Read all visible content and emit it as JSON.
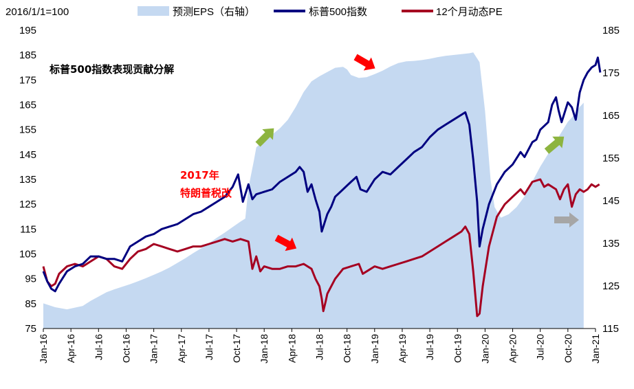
{
  "chart_data": {
    "type": "line",
    "title": "标普500指数表现贡献分解",
    "base_label": "2016/1/1=100",
    "categories": [
      "Jan-16",
      "Apr-16",
      "Jul-16",
      "Oct-16",
      "Jan-17",
      "Apr-17",
      "Jul-17",
      "Oct-17",
      "Jan-18",
      "Apr-18",
      "Jul-18",
      "Oct-18",
      "Jan-19",
      "Apr-19",
      "Jul-19",
      "Oct-19",
      "Jan-20",
      "Apr-20",
      "Jul-20",
      "Oct-20",
      "Jan-21"
    ],
    "ylim_left": [
      75,
      195
    ],
    "yticks_left": [
      75,
      85,
      95,
      105,
      115,
      125,
      135,
      145,
      155,
      165,
      175,
      185,
      195
    ],
    "ylim_right": [
      115,
      185
    ],
    "yticks_right": [
      115,
      125,
      135,
      145,
      155,
      165,
      175,
      185
    ],
    "series": [
      {
        "name": "预测EPS（右轴）",
        "type": "area",
        "axis": "right",
        "color": "#c5d9f1",
        "values": [
          [
            0,
            120.9
          ],
          [
            1.5,
            120.0
          ],
          [
            3,
            119.5
          ],
          [
            5,
            120.3
          ],
          [
            6,
            121.5
          ],
          [
            7,
            122.5
          ],
          [
            8,
            123.5
          ],
          [
            9,
            124.2
          ],
          [
            10,
            124.8
          ],
          [
            11,
            125.4
          ],
          [
            12,
            126.1
          ],
          [
            13,
            126.8
          ],
          [
            14,
            127.6
          ],
          [
            15,
            128.4
          ],
          [
            16,
            129.3
          ],
          [
            17,
            130.4
          ],
          [
            18,
            131.5
          ],
          [
            19,
            132.7
          ],
          [
            20,
            133.8
          ],
          [
            21,
            135.0
          ],
          [
            22,
            136.3
          ],
          [
            23,
            137.5
          ],
          [
            24,
            138.8
          ],
          [
            25,
            140.1
          ],
          [
            25.6,
            140.8
          ],
          [
            26,
            148.0
          ],
          [
            26.7,
            154.5
          ],
          [
            27,
            157.5
          ],
          [
            28,
            159.3
          ],
          [
            29,
            160.5
          ],
          [
            30,
            162.0
          ],
          [
            31,
            164.0
          ],
          [
            32,
            167.0
          ],
          [
            33,
            170.5
          ],
          [
            34,
            173.0
          ],
          [
            35,
            174.2
          ],
          [
            36,
            175.2
          ],
          [
            37,
            176.2
          ],
          [
            38,
            176.4
          ],
          [
            38.5,
            175.8
          ],
          [
            39,
            174.5
          ],
          [
            40,
            173.8
          ],
          [
            41,
            174.0
          ],
          [
            42,
            174.7
          ],
          [
            43,
            175.5
          ],
          [
            44,
            176.5
          ],
          [
            45,
            177.3
          ],
          [
            46,
            177.7
          ],
          [
            47,
            177.8
          ],
          [
            48,
            178.0
          ],
          [
            49,
            178.3
          ],
          [
            50,
            178.7
          ],
          [
            51,
            179.0
          ],
          [
            52,
            179.2
          ],
          [
            53,
            179.4
          ],
          [
            54,
            179.6
          ],
          [
            54.5,
            179.8
          ],
          [
            55.3,
            177.5
          ],
          [
            56,
            166.0
          ],
          [
            56.7,
            150.0
          ],
          [
            57.2,
            143.5
          ],
          [
            58,
            141.0
          ],
          [
            59,
            141.8
          ],
          [
            60,
            143.5
          ],
          [
            61,
            146.0
          ],
          [
            62,
            149.5
          ],
          [
            63,
            153.0
          ],
          [
            64,
            156.0
          ],
          [
            65,
            159.0
          ],
          [
            66,
            162.0
          ],
          [
            66.5,
            163.5
          ],
          [
            67,
            164.5
          ],
          [
            68,
            167.0
          ],
          [
            68.5,
            168.0
          ]
        ]
      },
      {
        "name": "标普500指数",
        "type": "line",
        "axis": "left",
        "color": "#000080",
        "values": [
          [
            0,
            98
          ],
          [
            0.5,
            94
          ],
          [
            1,
            91
          ],
          [
            1.5,
            90
          ],
          [
            2,
            93
          ],
          [
            3,
            98
          ],
          [
            4,
            100
          ],
          [
            5,
            101
          ],
          [
            6,
            104
          ],
          [
            7,
            104
          ],
          [
            8,
            103
          ],
          [
            9,
            103
          ],
          [
            10,
            102
          ],
          [
            11,
            108
          ],
          [
            12,
            110
          ],
          [
            13,
            112
          ],
          [
            14,
            113
          ],
          [
            15,
            115
          ],
          [
            16,
            116
          ],
          [
            17,
            117
          ],
          [
            18,
            119
          ],
          [
            19,
            121
          ],
          [
            20,
            122
          ],
          [
            21,
            124
          ],
          [
            22,
            126
          ],
          [
            23,
            128
          ],
          [
            24,
            132
          ],
          [
            24.7,
            137
          ],
          [
            25.3,
            126
          ],
          [
            26,
            133
          ],
          [
            26.5,
            127
          ],
          [
            27,
            129
          ],
          [
            28,
            130
          ],
          [
            29,
            131
          ],
          [
            30,
            134
          ],
          [
            31,
            136
          ],
          [
            32,
            138
          ],
          [
            32.5,
            140
          ],
          [
            33,
            138
          ],
          [
            33.5,
            130
          ],
          [
            34,
            133
          ],
          [
            34.5,
            127
          ],
          [
            35,
            122
          ],
          [
            35.3,
            114
          ],
          [
            35.6,
            117
          ],
          [
            36,
            121
          ],
          [
            36.5,
            124
          ],
          [
            37,
            128
          ],
          [
            38,
            131
          ],
          [
            39,
            134
          ],
          [
            39.7,
            136
          ],
          [
            40.2,
            131
          ],
          [
            41,
            130
          ],
          [
            42,
            135
          ],
          [
            43,
            138
          ],
          [
            44,
            137
          ],
          [
            45,
            140
          ],
          [
            46,
            143
          ],
          [
            47,
            146
          ],
          [
            48,
            148
          ],
          [
            49,
            152
          ],
          [
            50,
            155
          ],
          [
            51,
            157
          ],
          [
            52,
            159
          ],
          [
            53,
            161
          ],
          [
            53.5,
            162
          ],
          [
            54,
            157
          ],
          [
            54.5,
            143
          ],
          [
            55,
            126
          ],
          [
            55.3,
            108
          ],
          [
            55.7,
            115
          ],
          [
            56.5,
            125
          ],
          [
            57.5,
            133
          ],
          [
            58.5,
            138
          ],
          [
            59.5,
            141
          ],
          [
            60.5,
            146
          ],
          [
            61,
            144
          ],
          [
            62,
            150
          ],
          [
            62.5,
            151
          ],
          [
            63,
            155
          ],
          [
            64,
            158
          ],
          [
            64.5,
            165
          ],
          [
            65,
            168
          ],
          [
            65.3,
            163
          ],
          [
            65.7,
            158
          ],
          [
            66,
            161
          ],
          [
            66.5,
            166
          ],
          [
            67,
            164
          ],
          [
            67.5,
            159
          ],
          [
            68,
            170
          ],
          [
            68.5,
            175
          ],
          [
            69,
            178
          ],
          [
            69.5,
            180
          ],
          [
            70,
            181
          ],
          [
            70.3,
            184
          ],
          [
            70.6,
            178
          ]
        ]
      },
      {
        "name": "12个月动态PE",
        "type": "line",
        "axis": "left",
        "color": "#a50021",
        "values": [
          [
            0,
            100
          ],
          [
            0.5,
            94
          ],
          [
            1,
            92
          ],
          [
            1.5,
            93
          ],
          [
            2,
            97
          ],
          [
            3,
            100
          ],
          [
            4,
            101
          ],
          [
            5,
            100
          ],
          [
            6,
            102
          ],
          [
            7,
            104
          ],
          [
            8,
            103
          ],
          [
            9,
            100
          ],
          [
            10,
            99
          ],
          [
            11,
            103
          ],
          [
            12,
            106
          ],
          [
            13,
            107
          ],
          [
            14,
            109
          ],
          [
            15,
            108
          ],
          [
            16,
            107
          ],
          [
            17,
            106
          ],
          [
            18,
            107
          ],
          [
            19,
            108
          ],
          [
            20,
            108
          ],
          [
            21,
            109
          ],
          [
            22,
            110
          ],
          [
            23,
            111
          ],
          [
            24,
            110
          ],
          [
            25,
            111
          ],
          [
            26,
            110
          ],
          [
            26.5,
            99
          ],
          [
            27,
            104
          ],
          [
            27.5,
            98
          ],
          [
            28,
            100
          ],
          [
            29,
            99
          ],
          [
            30,
            99
          ],
          [
            31,
            100
          ],
          [
            32,
            100
          ],
          [
            33,
            101
          ],
          [
            34,
            99
          ],
          [
            34.5,
            95
          ],
          [
            35,
            92
          ],
          [
            35.3,
            87
          ],
          [
            35.5,
            82
          ],
          [
            35.8,
            86
          ],
          [
            36,
            89
          ],
          [
            37,
            95
          ],
          [
            38,
            99
          ],
          [
            39,
            100
          ],
          [
            40,
            101
          ],
          [
            40.5,
            97
          ],
          [
            41,
            98
          ],
          [
            42,
            100
          ],
          [
            43,
            99
          ],
          [
            44,
            100
          ],
          [
            45,
            101
          ],
          [
            46,
            102
          ],
          [
            47,
            103
          ],
          [
            48,
            104
          ],
          [
            49,
            106
          ],
          [
            50,
            108
          ],
          [
            51,
            110
          ],
          [
            52,
            112
          ],
          [
            53,
            114
          ],
          [
            53.5,
            116
          ],
          [
            54,
            113
          ],
          [
            54.5,
            98
          ],
          [
            55,
            80
          ],
          [
            55.3,
            81
          ],
          [
            55.7,
            92
          ],
          [
            56.5,
            108
          ],
          [
            57.5,
            120
          ],
          [
            58.5,
            125
          ],
          [
            59.5,
            128
          ],
          [
            60.5,
            131
          ],
          [
            61,
            129
          ],
          [
            62,
            134
          ],
          [
            63,
            135
          ],
          [
            63.5,
            132
          ],
          [
            64,
            133
          ],
          [
            65,
            131
          ],
          [
            65.5,
            127
          ],
          [
            66,
            131
          ],
          [
            66.5,
            133
          ],
          [
            67,
            124
          ],
          [
            67.5,
            129
          ],
          [
            68,
            131
          ],
          [
            68.5,
            130
          ],
          [
            69,
            131
          ],
          [
            69.5,
            133
          ],
          [
            70,
            132
          ],
          [
            70.5,
            133
          ]
        ]
      }
    ],
    "annotations": [
      {
        "text": "2017年",
        "color": "#ff0000"
      },
      {
        "text": "特朗普税改",
        "color": "#ff0000"
      }
    ],
    "arrows": [
      {
        "color": "#ff0000"
      },
      {
        "color": "#ff0000"
      },
      {
        "color": "#8db43f"
      },
      {
        "color": "#8db43f"
      },
      {
        "color": "#a6a6a6"
      }
    ],
    "grid": false,
    "legend_position": "top"
  }
}
